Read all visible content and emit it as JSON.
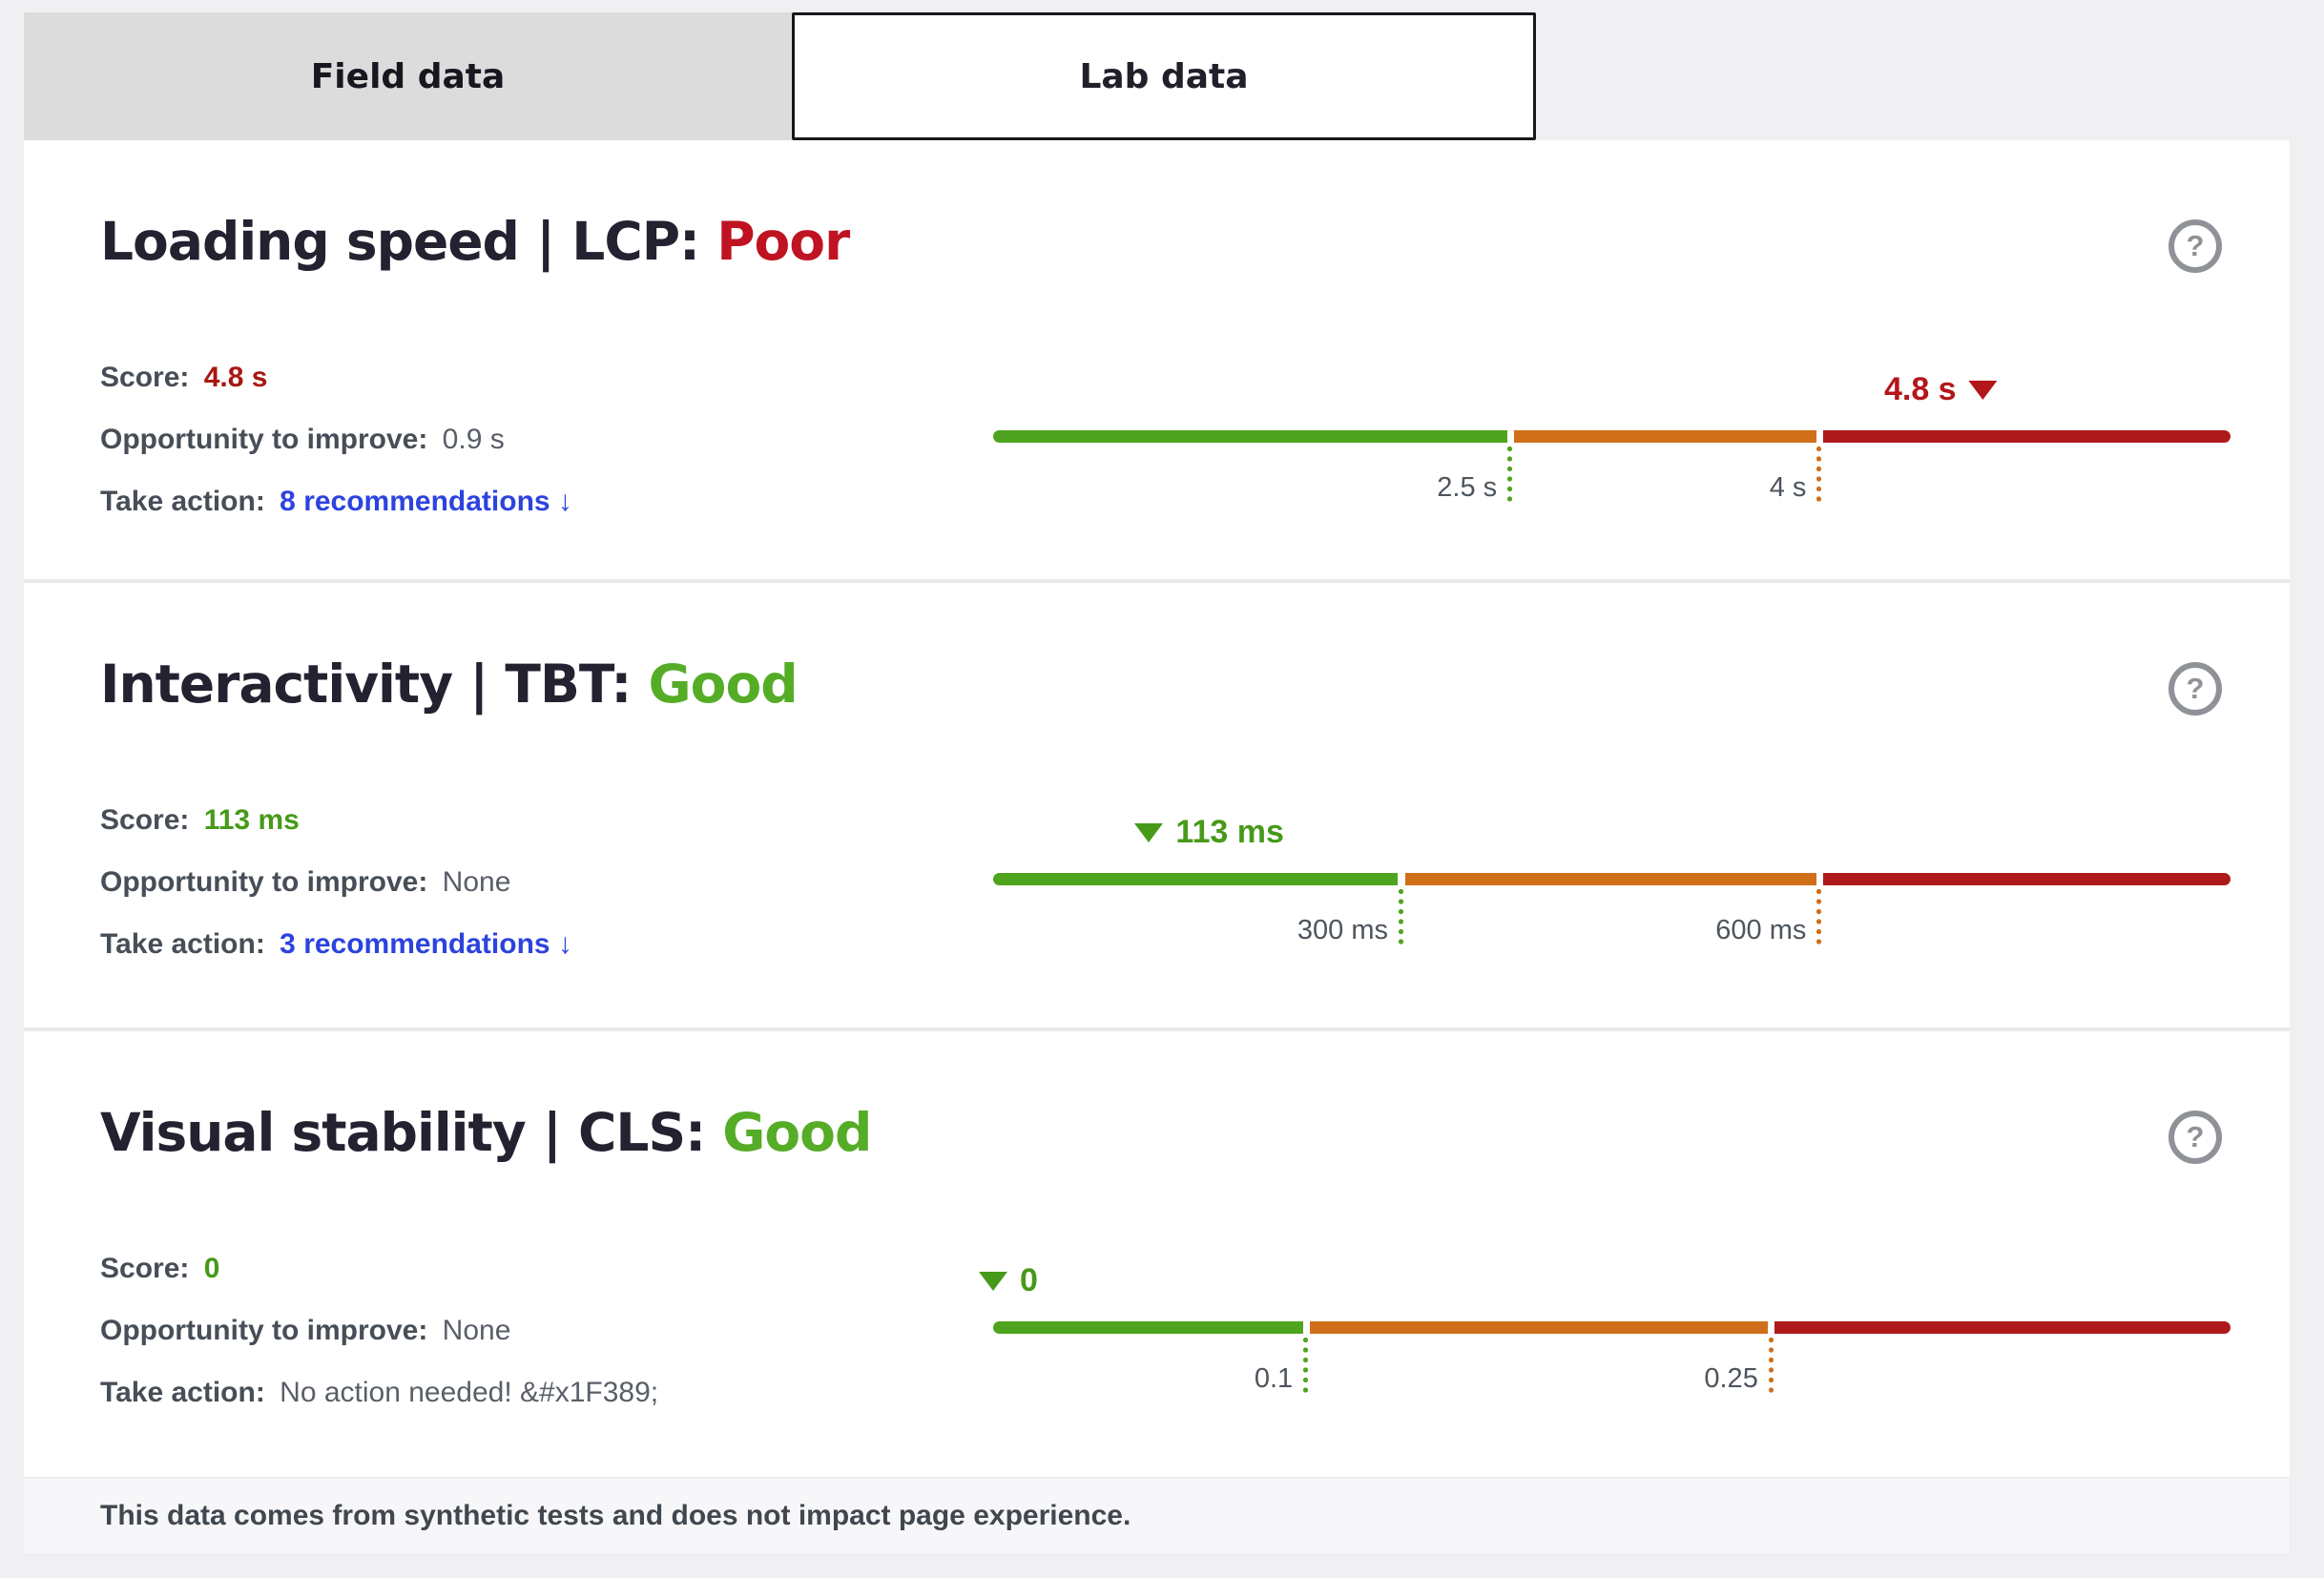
{
  "page": {
    "background": "#f0f0f3",
    "panel_background": "#ffffff"
  },
  "icons": {
    "help_glyph": "?"
  },
  "tabs": [
    {
      "label": "Field data",
      "active": false
    },
    {
      "label": "Lab data",
      "active": true
    }
  ],
  "cards": [
    {
      "id": "lcp",
      "title": "Loading speed | LCP:",
      "status": "Poor",
      "status_color": "#bf1322",
      "lines": {
        "score_label": "Score:",
        "score_value": "4.8 s",
        "score_value_color": "#a71712",
        "opportunity_label": "Opportunity to improve:",
        "opportunity_value": "0.9 s",
        "action_label": "Take action:",
        "action_text": "8 recommendations ↓",
        "action_is_link": true
      },
      "gauge": {
        "type": "threshold-gauge",
        "value": 4.8,
        "unit": "s",
        "value_label": "4.8 s",
        "scale_max": 6,
        "value_pct": 80,
        "indicator_color": "#b3161b",
        "triangle_position": "after",
        "thresholds": [
          {
            "value": 2.5,
            "label": "2.5 s",
            "pct": 41.8,
            "color": "#4fa41f"
          },
          {
            "value": 4,
            "label": "4 s",
            "pct": 66.8,
            "color": "#d06f1a"
          }
        ],
        "segment_colors": [
          "#4fa41f",
          "#d06f1a",
          "#ae191c"
        ]
      }
    },
    {
      "id": "tbt",
      "title": "Interactivity | TBT:",
      "status": "Good",
      "status_color": "#55ac26",
      "lines": {
        "score_label": "Score:",
        "score_value": "113 ms",
        "score_value_color": "#479a19",
        "opportunity_label": "Opportunity to improve:",
        "opportunity_value": "None",
        "action_label": "Take action:",
        "action_text": "3 recommendations ↓",
        "action_is_link": true
      },
      "gauge": {
        "type": "threshold-gauge",
        "value": 113,
        "unit": "ms",
        "value_label": "113 ms",
        "scale_max": 900,
        "value_pct": 12.6,
        "indicator_color": "#479a19",
        "triangle_position": "before",
        "thresholds": [
          {
            "value": 300,
            "label": "300 ms",
            "pct": 33.0,
            "color": "#4fa41f"
          },
          {
            "value": 600,
            "label": "600 ms",
            "pct": 66.8,
            "color": "#d06f1a"
          }
        ],
        "segment_colors": [
          "#4fa41f",
          "#d06f1a",
          "#ae191c"
        ]
      }
    },
    {
      "id": "cls",
      "title": "Visual stability | CLS:",
      "status": "Good",
      "status_color": "#55ac26",
      "lines": {
        "score_label": "Score:",
        "score_value": "0",
        "score_value_color": "#479a19",
        "opportunity_label": "Opportunity to improve:",
        "opportunity_value": "None",
        "action_label": "Take action:",
        "action_text": "No action needed! &#x1F389;",
        "action_is_link": false
      },
      "gauge": {
        "type": "threshold-gauge",
        "value": 0,
        "unit": "",
        "value_label": "0",
        "scale_max": 0.4,
        "value_pct": 0,
        "indicator_color": "#479a19",
        "triangle_position": "before",
        "thresholds": [
          {
            "value": 0.1,
            "label": "0.1",
            "pct": 25.3,
            "color": "#4fa41f"
          },
          {
            "value": 0.25,
            "label": "0.25",
            "pct": 62.9,
            "color": "#d06f1a"
          }
        ],
        "segment_colors": [
          "#4fa41f",
          "#d06f1a",
          "#ae191c"
        ]
      }
    }
  ],
  "footer": {
    "text": "This data comes from synthetic tests and does not impact page experience."
  }
}
